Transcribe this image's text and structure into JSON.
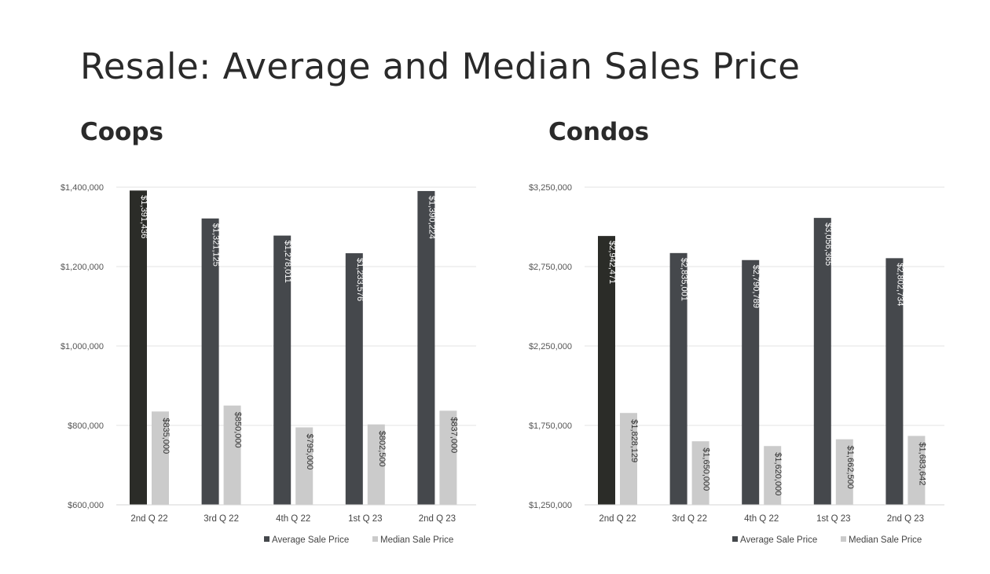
{
  "title": "Resale: Average and Median Sales Price",
  "colors": {
    "average": "#45484c",
    "average_first": "#2b2c28",
    "median": "#cbcbcb",
    "grid": "#e3e3e3"
  },
  "chart_data": [
    {
      "type": "bar",
      "title": "Coops",
      "categories": [
        "2nd Q 22",
        "3rd Q 22",
        "4th Q 22",
        "1st Q 23",
        "2nd Q 23"
      ],
      "ylim": [
        600000,
        1400000
      ],
      "yticks": [
        600000,
        800000,
        1000000,
        1200000,
        1400000
      ],
      "ytick_labels": [
        "$600,000",
        "$800,000",
        "$1,000,000",
        "$1,200,000",
        "$1,400,000"
      ],
      "series": [
        {
          "name": "Average Sale Price",
          "values": [
            1391436,
            1321125,
            1278011,
            1233576,
            1390224
          ],
          "labels": [
            "$1,391,436",
            "$1,321,125",
            "$1,278,011",
            "$1,233,576",
            "$1,390,224"
          ]
        },
        {
          "name": "Median Sale Price",
          "values": [
            835000,
            850000,
            795000,
            802500,
            837000
          ],
          "labels": [
            "$835,000",
            "$850,000",
            "$795,000",
            "$802,500",
            "$837,000"
          ]
        }
      ],
      "legend": "bottom-right"
    },
    {
      "type": "bar",
      "title": "Condos",
      "categories": [
        "2nd Q 22",
        "3rd Q 22",
        "4th Q 22",
        "1st Q 23",
        "2nd Q 23"
      ],
      "ylim": [
        1250000,
        3250000
      ],
      "yticks": [
        1250000,
        1750000,
        2250000,
        2750000,
        3250000
      ],
      "ytick_labels": [
        "$1,250,000",
        "$1,750,000",
        "$2,250,000",
        "$2,750,000",
        "$3,250,000"
      ],
      "series": [
        {
          "name": "Average Sale Price",
          "values": [
            2942471,
            2835001,
            2790789,
            3056365,
            2802734
          ],
          "labels": [
            "$2,942,471",
            "$2,835,001",
            "$2,790,789",
            "$3,056,365",
            "$2,802,734"
          ]
        },
        {
          "name": "Median Sale Price",
          "values": [
            1828129,
            1650000,
            1620000,
            1662500,
            1683642
          ],
          "labels": [
            "$1,828,129",
            "$1,650,000",
            "$1,620,000",
            "$1,662,500",
            "$1,683,642"
          ]
        }
      ],
      "legend": "bottom-right"
    }
  ]
}
